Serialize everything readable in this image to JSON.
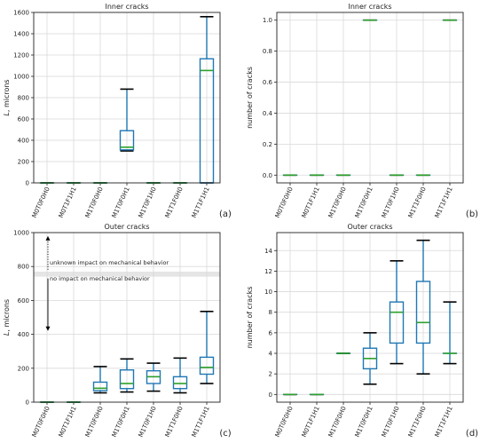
{
  "chart_data": [
    {
      "type": "box",
      "panel": "(a)",
      "title": "Inner cracks",
      "ylabel": "L, microns",
      "ylim": [
        0,
        1600
      ],
      "yticks": [
        0,
        200,
        400,
        600,
        800,
        1000,
        1200,
        1400,
        1600
      ],
      "grid": true,
      "categories": [
        "M0T0F0H0",
        "M0T1F1H1",
        "M1T0F0H0",
        "M1T0F0H1",
        "M1T0F1H0",
        "M1T1F0H0",
        "M1T1F1H1"
      ],
      "boxes": [
        {
          "min": 0,
          "q1": 0,
          "median": 0,
          "q3": 0,
          "max": 0
        },
        {
          "min": 0,
          "q1": 0,
          "median": 0,
          "q3": 0,
          "max": 0
        },
        {
          "min": 0,
          "q1": 0,
          "median": 0,
          "q3": 0,
          "max": 0
        },
        {
          "min": 300,
          "q1": 310,
          "median": 335,
          "q3": 490,
          "max": 880
        },
        {
          "min": 0,
          "q1": 0,
          "median": 0,
          "q3": 0,
          "max": 0
        },
        {
          "min": 0,
          "q1": 0,
          "median": 0,
          "q3": 0,
          "max": 0
        },
        {
          "min": 0,
          "q1": 0,
          "median": 1055,
          "q3": 1165,
          "max": 1560
        }
      ]
    },
    {
      "type": "box",
      "panel": "(b)",
      "title": "Inner cracks",
      "ylabel": "number of cracks",
      "ylim": [
        -0.05,
        1.05
      ],
      "yticks": [
        0.0,
        0.2,
        0.4,
        0.6,
        0.8,
        1.0
      ],
      "yticklabels": [
        "0.0",
        "0.2",
        "0.4",
        "0.6",
        "0.8",
        "1.0"
      ],
      "grid": true,
      "categories": [
        "M0T0F0H0",
        "M0T1F1H1",
        "M1T0F0H0",
        "M1T0F0H1",
        "M1T0F1H0",
        "M1T1F0H0",
        "M1T1F1H1"
      ],
      "boxes": [
        {
          "min": 0,
          "q1": 0,
          "median": 0,
          "q3": 0,
          "max": 0
        },
        {
          "min": 0,
          "q1": 0,
          "median": 0,
          "q3": 0,
          "max": 0
        },
        {
          "min": 0,
          "q1": 0,
          "median": 0,
          "q3": 0,
          "max": 0
        },
        {
          "min": 1,
          "q1": 1,
          "median": 1,
          "q3": 1,
          "max": 1
        },
        {
          "min": 0,
          "q1": 0,
          "median": 0,
          "q3": 0,
          "max": 0
        },
        {
          "min": 0,
          "q1": 0,
          "median": 0,
          "q3": 0,
          "max": 0
        },
        {
          "min": 1,
          "q1": 1,
          "median": 1,
          "q3": 1,
          "max": 1
        }
      ]
    },
    {
      "type": "box",
      "panel": "(c)",
      "title": "Outer cracks",
      "ylabel": "L, microns",
      "ylim": [
        0,
        1000
      ],
      "yticks": [
        0,
        200,
        400,
        600,
        800,
        1000
      ],
      "grid": true,
      "band": [
        740,
        770
      ],
      "annotations": {
        "above": "unknown impact on mechanical behavior",
        "below": "no impact on mechanical behavior"
      },
      "categories": [
        "M0T0F0H0",
        "M0T1F1H1",
        "M1T0F0H0",
        "M1T0F0H1",
        "M1T0F1H0",
        "M1T1F0H0",
        "M1T1F1H1"
      ],
      "boxes": [
        {
          "min": 0,
          "q1": 0,
          "median": 0,
          "q3": 0,
          "max": 0
        },
        {
          "min": 0,
          "q1": 0,
          "median": 0,
          "q3": 0,
          "max": 0
        },
        {
          "min": 55,
          "q1": 68,
          "median": 82,
          "q3": 118,
          "max": 210
        },
        {
          "min": 60,
          "q1": 80,
          "median": 110,
          "q3": 190,
          "max": 255
        },
        {
          "min": 65,
          "q1": 110,
          "median": 150,
          "q3": 185,
          "max": 230
        },
        {
          "min": 55,
          "q1": 80,
          "median": 110,
          "q3": 150,
          "max": 260
        },
        {
          "min": 110,
          "q1": 165,
          "median": 205,
          "q3": 265,
          "max": 535
        }
      ]
    },
    {
      "type": "box",
      "panel": "(d)",
      "title": "Outer cracks",
      "ylabel": "number of cracks",
      "ylim": [
        -0.75,
        15.75
      ],
      "yticks": [
        0,
        2,
        4,
        6,
        8,
        10,
        12,
        14
      ],
      "grid": true,
      "categories": [
        "M0T0F0H0",
        "M0T1F1H1",
        "M1T0F0H0",
        "M1T0F0H1",
        "M1T0F1H0",
        "M1T1F0H0",
        "M1T1F1H1"
      ],
      "boxes": [
        {
          "min": 0,
          "q1": 0,
          "median": 0,
          "q3": 0,
          "max": 0
        },
        {
          "min": 0,
          "q1": 0,
          "median": 0,
          "q3": 0,
          "max": 0
        },
        {
          "min": 4,
          "q1": 4,
          "median": 4,
          "q3": 4,
          "max": 4
        },
        {
          "min": 1,
          "q1": 2.5,
          "median": 3.5,
          "q3": 4.5,
          "max": 6
        },
        {
          "min": 3,
          "q1": 5,
          "median": 8,
          "q3": 9,
          "max": 13
        },
        {
          "min": 2,
          "q1": 5,
          "median": 7,
          "q3": 11,
          "max": 15
        },
        {
          "min": 3,
          "q1": 4,
          "median": 4,
          "q3": 4,
          "max": 9
        }
      ]
    }
  ],
  "colors": {
    "box": "#1f77b4",
    "median": "#2ca02c",
    "whisker_cap": "#000000",
    "grid": "#d9d9d9",
    "band": "#e5e5e5"
  }
}
